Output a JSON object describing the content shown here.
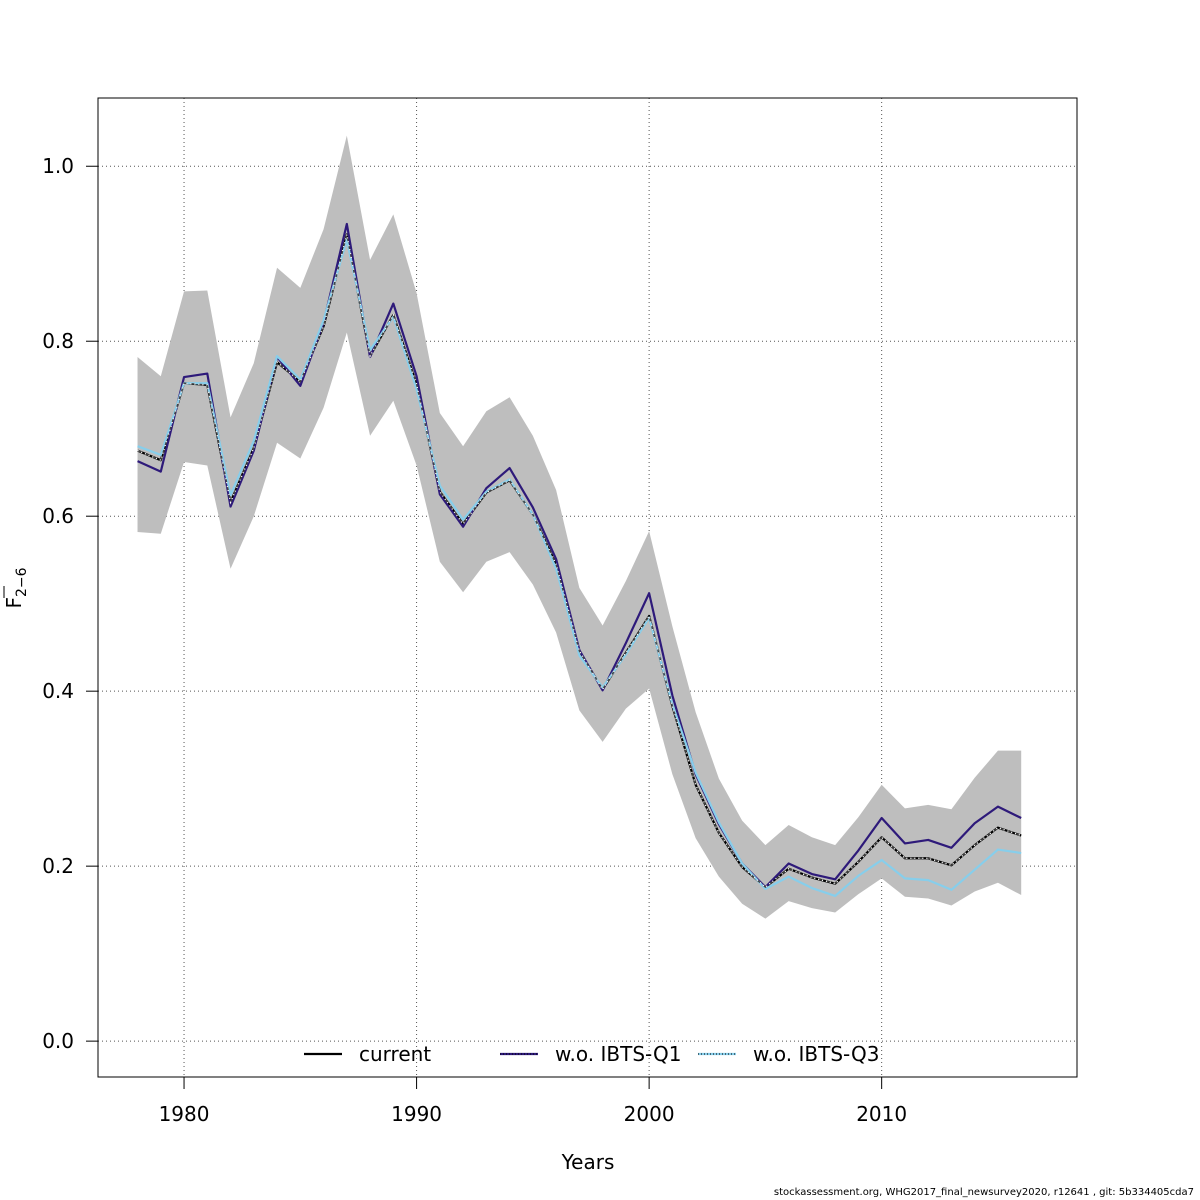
{
  "chart_data": {
    "type": "line",
    "title": "",
    "xlabel": "Years",
    "ylabel_main": "F",
    "ylabel_sub": "2−6",
    "xlim": [
      1976.3,
      2018.4
    ],
    "ylim": [
      -0.041,
      1.078
    ],
    "xticks": [
      1980,
      1990,
      2000,
      2010
    ],
    "yticks": [
      0.0,
      0.2,
      0.4,
      0.6,
      0.8,
      1.0
    ],
    "ytick_labels": [
      "0.0",
      "0.2",
      "0.4",
      "0.6",
      "0.8",
      "1.0"
    ],
    "grid": true,
    "x": [
      1978,
      1979,
      1980,
      1981,
      1982,
      1983,
      1984,
      1985,
      1986,
      1987,
      1988,
      1989,
      1990,
      1991,
      1992,
      1993,
      1994,
      1995,
      1996,
      1997,
      1998,
      1999,
      2000,
      2001,
      2002,
      2003,
      2004,
      2005,
      2006,
      2007,
      2008,
      2009,
      2010,
      2011,
      2012,
      2013,
      2014,
      2015,
      2016
    ],
    "band": {
      "name": "confidence interval",
      "color": "#bebebe",
      "upper": [
        0.782,
        0.76,
        0.857,
        0.858,
        0.713,
        0.775,
        0.884,
        0.861,
        0.928,
        1.035,
        0.893,
        0.945,
        0.855,
        0.718,
        0.68,
        0.72,
        0.736,
        0.692,
        0.63,
        0.518,
        0.475,
        0.526,
        0.583,
        0.474,
        0.376,
        0.3,
        0.252,
        0.224,
        0.247,
        0.233,
        0.224,
        0.256,
        0.293,
        0.266,
        0.27,
        0.265,
        0.301,
        0.332,
        0.332
      ],
      "lower": [
        0.582,
        0.58,
        0.662,
        0.658,
        0.54,
        0.6,
        0.684,
        0.666,
        0.724,
        0.81,
        0.692,
        0.732,
        0.658,
        0.548,
        0.513,
        0.548,
        0.559,
        0.522,
        0.467,
        0.378,
        0.342,
        0.38,
        0.403,
        0.305,
        0.232,
        0.188,
        0.157,
        0.14,
        0.16,
        0.152,
        0.147,
        0.168,
        0.186,
        0.165,
        0.163,
        0.155,
        0.171,
        0.181,
        0.167
      ]
    },
    "series": [
      {
        "name": "current",
        "color": "#000000",
        "dash": "solid",
        "values": [
          0.675,
          0.664,
          0.752,
          0.75,
          0.616,
          0.678,
          0.776,
          0.754,
          0.817,
          0.922,
          0.783,
          0.83,
          0.751,
          0.628,
          0.591,
          0.627,
          0.641,
          0.602,
          0.545,
          0.446,
          0.402,
          0.444,
          0.486,
          0.383,
          0.293,
          0.238,
          0.199,
          0.176,
          0.197,
          0.187,
          0.18,
          0.205,
          0.233,
          0.209,
          0.209,
          0.201,
          0.224,
          0.244,
          0.235
        ]
      },
      {
        "name": "w.o. IBTS-Q1",
        "color": "#2e1a7a",
        "dash": "solid",
        "values": [
          0.663,
          0.651,
          0.759,
          0.763,
          0.611,
          0.675,
          0.782,
          0.749,
          0.821,
          0.934,
          0.782,
          0.843,
          0.76,
          0.625,
          0.588,
          0.632,
          0.655,
          0.61,
          0.551,
          0.447,
          0.401,
          0.455,
          0.512,
          0.395,
          0.305,
          0.248,
          0.203,
          0.176,
          0.203,
          0.191,
          0.185,
          0.218,
          0.255,
          0.226,
          0.23,
          0.221,
          0.249,
          0.268,
          0.255
        ]
      },
      {
        "name": "w.o. IBTS-Q3",
        "color": "#87ceeb",
        "dash": "solid",
        "values": [
          0.68,
          0.67,
          0.752,
          0.752,
          0.624,
          0.686,
          0.783,
          0.756,
          0.824,
          0.916,
          0.79,
          0.828,
          0.745,
          0.635,
          0.596,
          0.628,
          0.642,
          0.602,
          0.54,
          0.441,
          0.404,
          0.442,
          0.484,
          0.385,
          0.307,
          0.25,
          0.203,
          0.174,
          0.188,
          0.175,
          0.166,
          0.189,
          0.207,
          0.186,
          0.184,
          0.173,
          0.196,
          0.219,
          0.215
        ]
      }
    ],
    "overlays": [
      {
        "series": "current",
        "color": "#444444",
        "dash": "dashed"
      },
      {
        "series": "current",
        "color": "#ffffff",
        "dash": "dotted"
      }
    ],
    "legend": {
      "placement": "bottom-center",
      "entries": [
        {
          "label": "current",
          "color": "#000000",
          "style": "solid"
        },
        {
          "label": "w.o. IBTS-Q1",
          "color": "#2e1a7a",
          "style": "solid-dotted"
        },
        {
          "label": "w.o. IBTS-Q3",
          "color": "#87ceeb",
          "style": "solid-dotted"
        }
      ]
    }
  },
  "footer": {
    "text": "stockassessment.org, WHG2017_final_newsurvey2020, r12641 , git: 5b334405cda7"
  }
}
